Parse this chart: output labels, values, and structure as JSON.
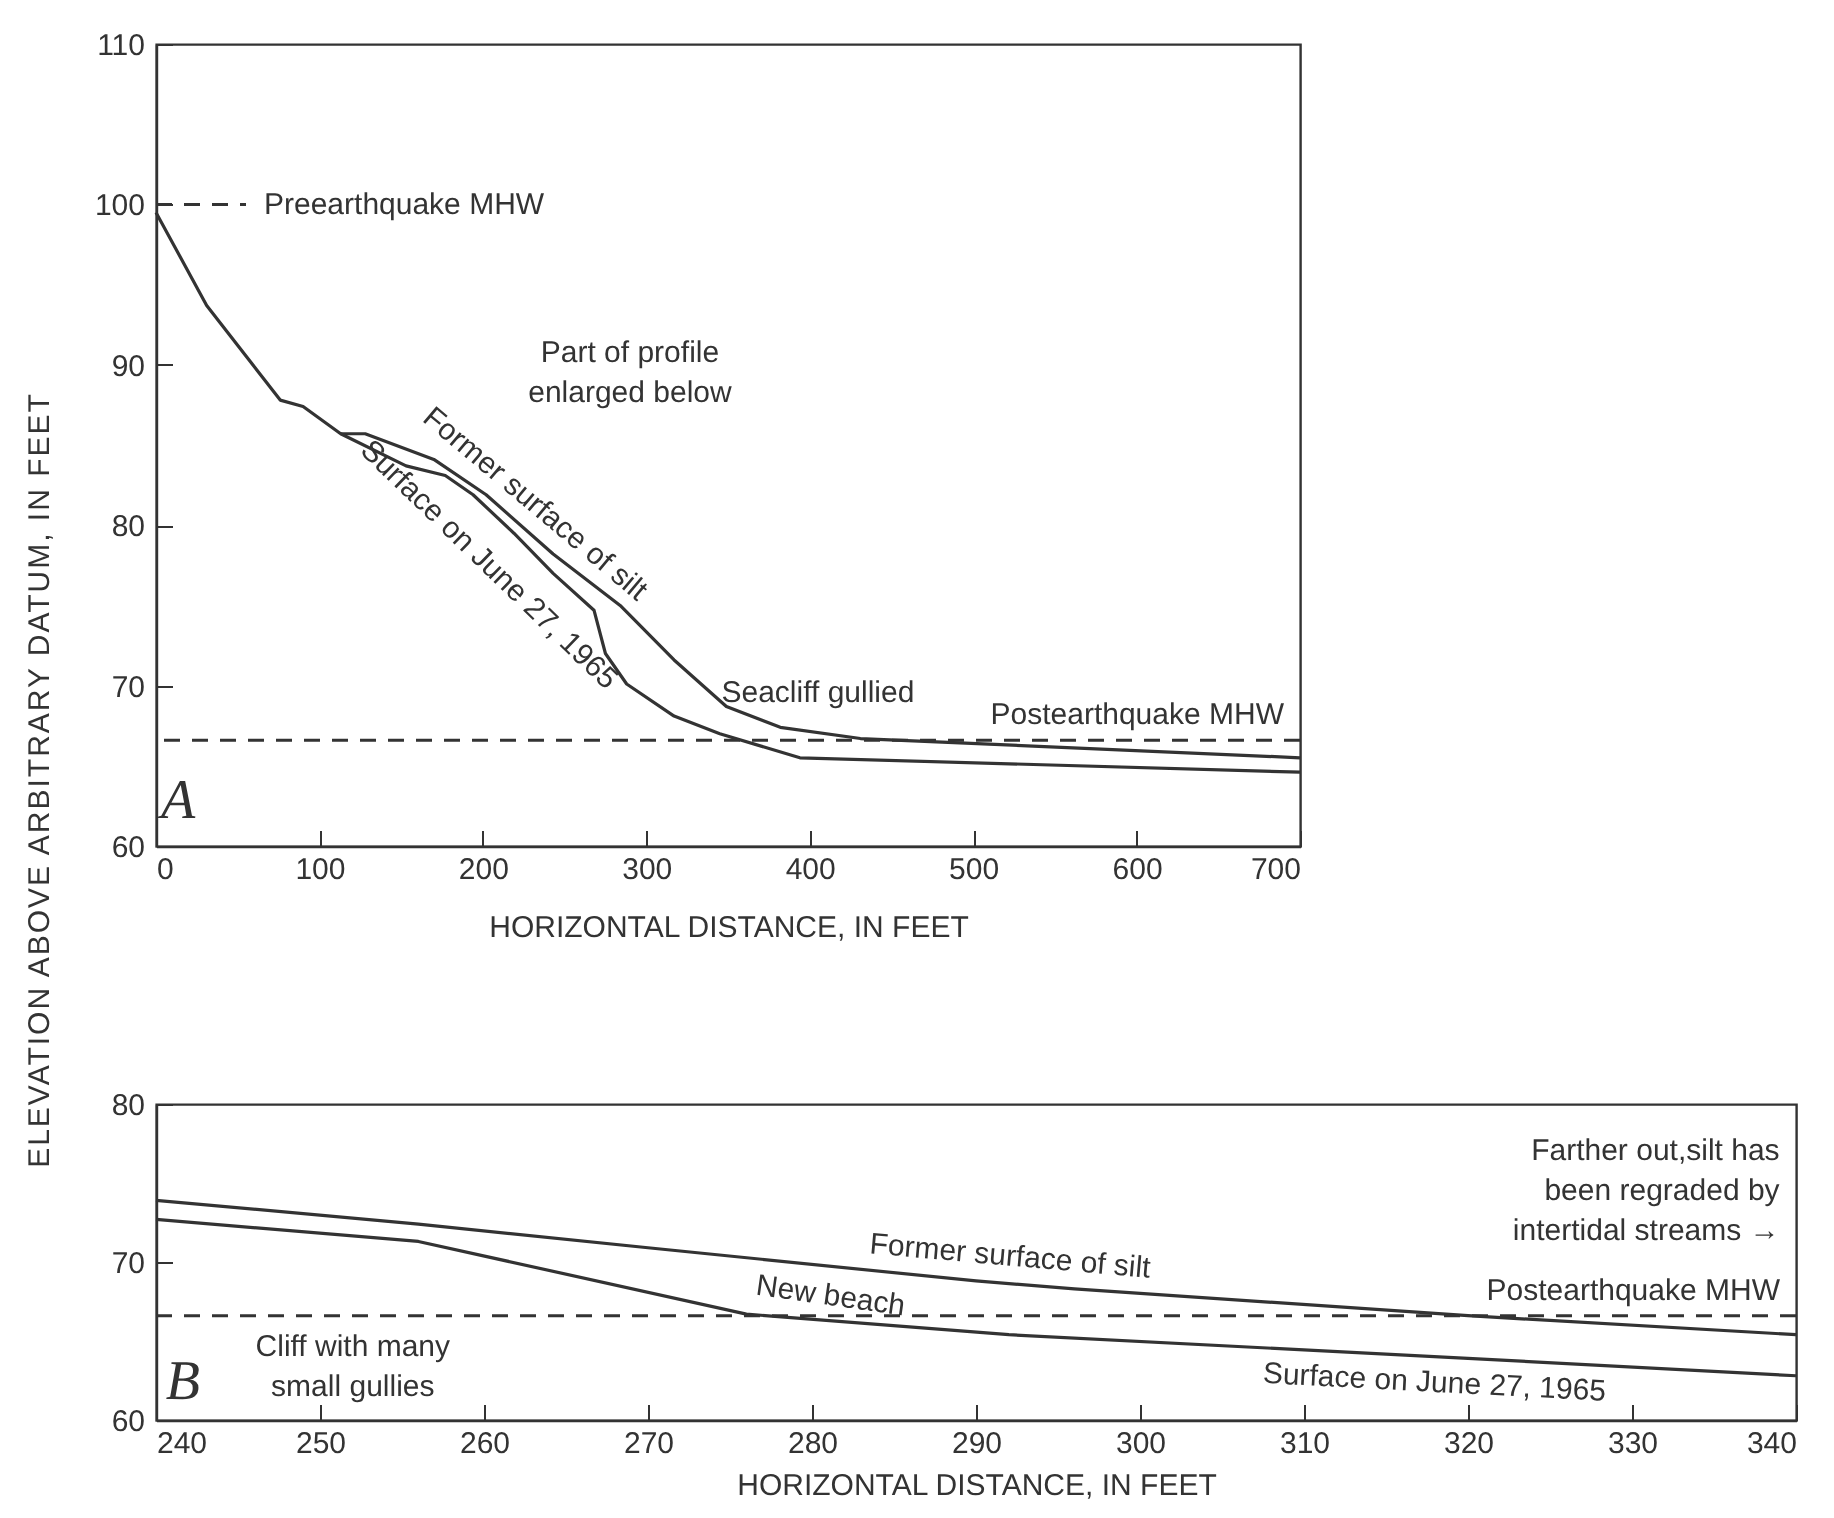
{
  "chart_data": [
    {
      "type": "line",
      "xlabel": "HORIZONTAL DISTANCE, IN FEET",
      "ylabel": "ELEVATION ABOVE ARBITRARY DATUM, IN FEET",
      "xlim": [
        0,
        700
      ],
      "ylim": [
        60,
        110
      ],
      "xticks": [
        0,
        100,
        200,
        300,
        400,
        500,
        600,
        700
      ],
      "yticks": [
        60,
        70,
        80,
        90,
        100,
        110
      ],
      "grid": false,
      "series": [
        {
          "name": "Former surface of silt",
          "color": "#333333",
          "x": [
            113,
            128,
            170,
            202,
            243,
            284,
            317,
            349,
            382,
            431,
            700
          ],
          "values": [
            85.7,
            85.7,
            84.1,
            81.9,
            78.2,
            75,
            71.6,
            68.7,
            67.4,
            66.7,
            65.5
          ]
        },
        {
          "name": "Surface on June 27, 1965",
          "color": "#333333",
          "x": [
            0,
            31,
            76,
            90,
            113,
            153,
            177,
            194,
            219,
            243,
            268,
            275,
            288,
            317,
            345,
            394,
            700
          ],
          "values": [
            99.5,
            93.7,
            87.8,
            87.4,
            85.7,
            83.7,
            83.1,
            81.9,
            79.5,
            77,
            74.7,
            72,
            70.1,
            68.1,
            67,
            65.5,
            64.6
          ]
        }
      ],
      "ref_lines": [
        {
          "axis": "y",
          "value": 100,
          "label": "Preearthquake MHW",
          "line_style": "dashed"
        },
        {
          "axis": "y",
          "value": 66.6,
          "label": "Postearthquake MHW",
          "line_style": "dashed"
        }
      ],
      "annotations": [
        "Part of profile enlarged below",
        "Seacliff gullied",
        "A"
      ]
    },
    {
      "type": "line",
      "xlabel": "HORIZONTAL DISTANCE, IN FEET",
      "xlim": [
        240,
        340
      ],
      "ylim": [
        60,
        80
      ],
      "xticks": [
        240,
        250,
        260,
        270,
        280,
        290,
        300,
        310,
        320,
        330,
        340
      ],
      "yticks": [
        60,
        70,
        80
      ],
      "grid": false,
      "series": [
        {
          "name": "Former surface of silt",
          "color": "#333333",
          "x": [
            240,
            256,
            270,
            290,
            296,
            320,
            340
          ],
          "values": [
            73.9,
            72.4,
            70.9,
            68.8,
            68.3,
            66.6,
            65.4
          ]
        },
        {
          "name": "Surface on June 27, 1965",
          "color": "#333333",
          "x": [
            240,
            256,
            276,
            292,
            320,
            340
          ],
          "values": [
            72.7,
            71.3,
            66.7,
            65.4,
            63.9,
            62.8
          ]
        }
      ],
      "ref_lines": [
        {
          "axis": "y",
          "value": 66.6,
          "label": "Postearthquake MHW",
          "line_style": "dashed"
        }
      ],
      "annotations": [
        "New beach",
        "Cliff with many small gullies",
        "Farther out,silt has been regraded by intertidal streams →",
        "B"
      ]
    }
  ]
}
